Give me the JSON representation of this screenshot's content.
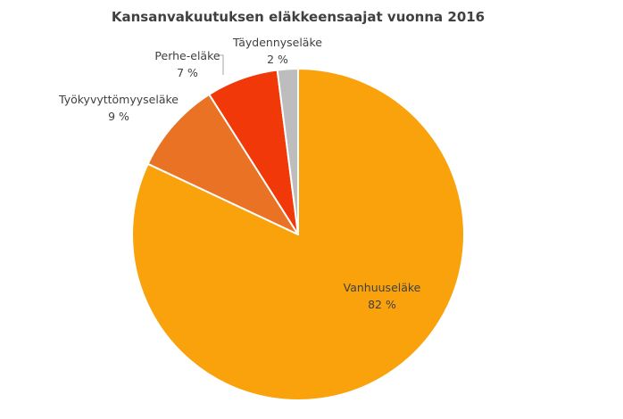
{
  "chart_data": {
    "type": "pie",
    "title": "Kansanvakuutuksen eläkkeensaajat vuonna 2016",
    "slices": [
      {
        "label": "Vanhuuseläke",
        "value": 82,
        "value_label": "82 %",
        "color": "#F9A20B"
      },
      {
        "label": "Työkyvyttömyyseläke",
        "value": 9,
        "value_label": "9 %",
        "color": "#E97225"
      },
      {
        "label": "Perhe-eläke",
        "value": 7,
        "value_label": "7 %",
        "color": "#F03808"
      },
      {
        "label": "Täydennyseläke",
        "value": 2,
        "value_label": "2 %",
        "color": "#BDBDBD"
      }
    ],
    "legend": "none",
    "start_angle_deg": 0,
    "direction": "clockwise",
    "slice_border_color": "#ffffff"
  }
}
